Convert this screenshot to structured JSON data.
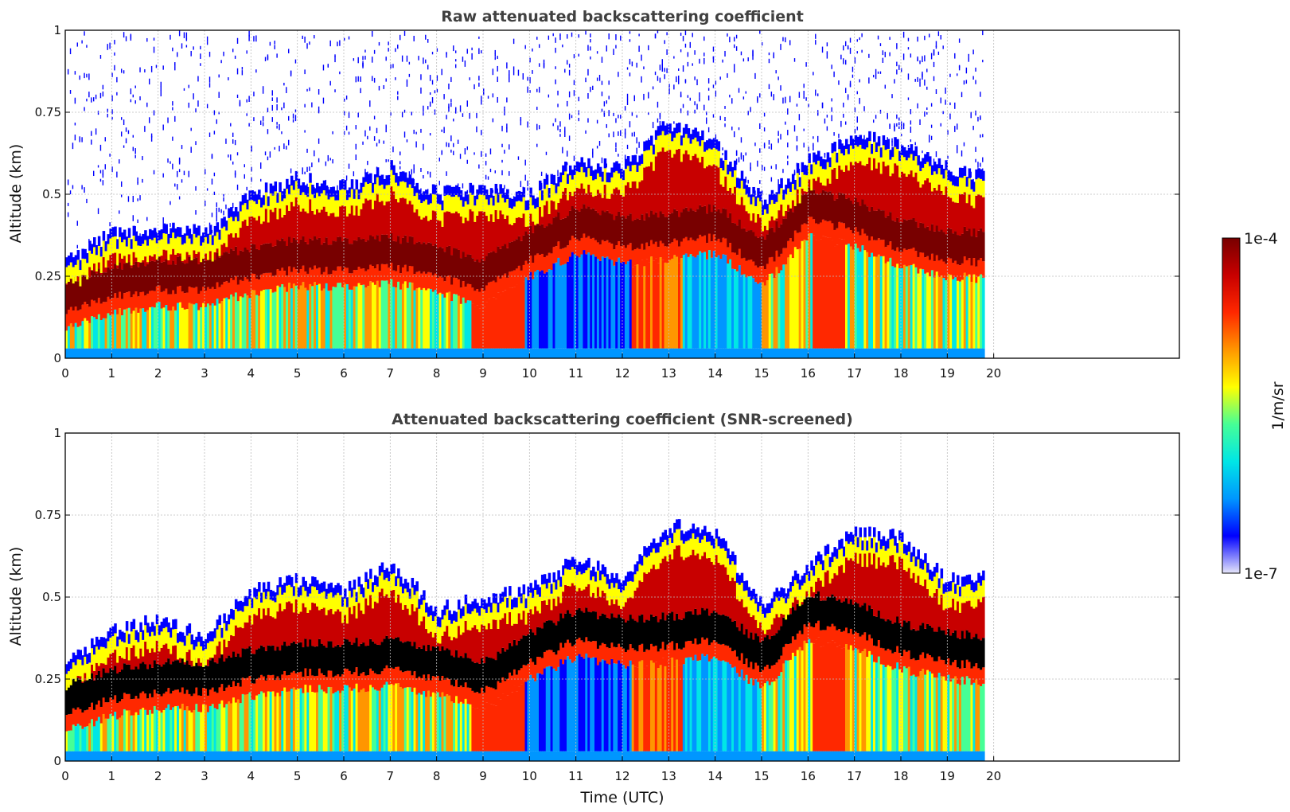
{
  "chart_data": [
    {
      "type": "heatmap",
      "title": "Raw attenuated backscattering coefficient",
      "xlabel": "",
      "ylabel": "Altitude (km)",
      "xlim": [
        0,
        24
      ],
      "ylim": [
        0,
        1
      ],
      "x_ticks": [
        "0",
        "1",
        "2",
        "3",
        "4",
        "5",
        "6",
        "7",
        "8",
        "9",
        "10",
        "11",
        "12",
        "13",
        "14",
        "15",
        "16",
        "17",
        "18",
        "19",
        "20"
      ],
      "y_ticks": [
        "0",
        "0.25",
        "0.5",
        "0.75",
        "1"
      ],
      "y_tick_values": [
        0,
        0.25,
        0.5,
        0.75,
        1
      ],
      "data_end_time": 19.8,
      "grid": true,
      "screened": false,
      "layer_top_profile": {
        "time": [
          0,
          1,
          2,
          3,
          4,
          5,
          6,
          7,
          8,
          9,
          10,
          11,
          12,
          13,
          14,
          15,
          16,
          17,
          18,
          19,
          19.8
        ],
        "top_km": [
          0.3,
          0.38,
          0.4,
          0.38,
          0.5,
          0.55,
          0.52,
          0.58,
          0.5,
          0.52,
          0.5,
          0.6,
          0.58,
          0.72,
          0.65,
          0.48,
          0.6,
          0.68,
          0.65,
          0.58,
          0.55
        ],
        "core_km": [
          0.17,
          0.22,
          0.24,
          0.24,
          0.28,
          0.3,
          0.3,
          0.31,
          0.28,
          0.24,
          0.33,
          0.4,
          0.37,
          0.38,
          0.4,
          0.3,
          0.45,
          0.42,
          0.36,
          0.33,
          0.32
        ]
      }
    },
    {
      "type": "heatmap",
      "title": "Attenuated backscattering coefficient (SNR-screened)",
      "xlabel": "Time (UTC)",
      "ylabel": "Altitude (km)",
      "xlim": [
        0,
        24
      ],
      "ylim": [
        0,
        1
      ],
      "x_ticks": [
        "0",
        "1",
        "2",
        "3",
        "4",
        "5",
        "6",
        "7",
        "8",
        "9",
        "10",
        "11",
        "12",
        "13",
        "14",
        "15",
        "16",
        "17",
        "18",
        "19",
        "20"
      ],
      "y_ticks": [
        "0",
        "0.25",
        "0.5",
        "0.75",
        "1"
      ],
      "y_tick_values": [
        0,
        0.25,
        0.5,
        0.75,
        1
      ],
      "data_end_time": 19.8,
      "grid": true,
      "screened": true,
      "layer_top_profile": {
        "time": [
          0,
          1,
          2,
          3,
          4,
          5,
          6,
          7,
          8,
          9,
          10,
          11,
          12,
          13,
          14,
          15,
          16,
          17,
          18,
          19,
          19.8
        ],
        "top_km": [
          0.31,
          0.4,
          0.43,
          0.38,
          0.52,
          0.55,
          0.52,
          0.6,
          0.46,
          0.5,
          0.52,
          0.62,
          0.56,
          0.72,
          0.7,
          0.47,
          0.6,
          0.7,
          0.68,
          0.55,
          0.56
        ],
        "core_km": [
          0.17,
          0.22,
          0.24,
          0.24,
          0.28,
          0.3,
          0.3,
          0.31,
          0.28,
          0.24,
          0.33,
          0.4,
          0.37,
          0.38,
          0.4,
          0.3,
          0.45,
          0.42,
          0.36,
          0.33,
          0.32
        ]
      }
    }
  ],
  "colorbar": {
    "label": "1/m/sr",
    "max_label": "1e-4",
    "min_label": "1e-7",
    "colors": [
      "#e6e6fa",
      "#0000ff",
      "#0096ff",
      "#00e6e6",
      "#46ff96",
      "#ffff00",
      "#ff9600",
      "#ff2800",
      "#c80000",
      "#780000"
    ]
  }
}
